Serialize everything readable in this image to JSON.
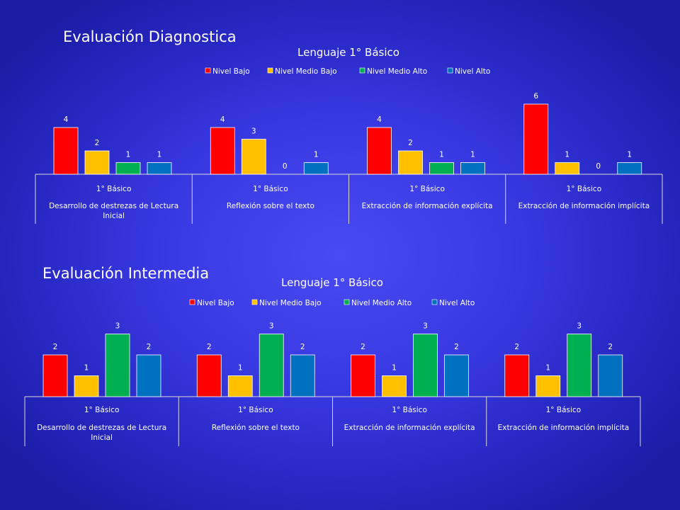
{
  "sections": [
    {
      "title": "Evaluación Diagnostica"
    },
    {
      "title": "Evaluación Intermedia"
    }
  ],
  "colors": {
    "Nivel Bajo": "#ff0000",
    "Nivel  Medio Bajo": "#ffc000",
    "Nivel Medio Alto": "#00b050",
    "Nivel Alto": "#0070c0",
    "text": "#ffffff",
    "grid": "#d9d9d9"
  },
  "chart_data": [
    {
      "type": "bar",
      "title": "Lenguaje 1° Básico",
      "legend_position": "top",
      "grid": false,
      "ylim": [
        0,
        6
      ],
      "categories": [
        {
          "level1": "1° Básico",
          "level2": "Desarrollo de destrezas de Lectura Inicial"
        },
        {
          "level1": "1° Básico",
          "level2": "Reflexión sobre el texto"
        },
        {
          "level1": "1° Básico",
          "level2": "Extracción de información explícita"
        },
        {
          "level1": "1° Básico",
          "level2": "Extracción de información implícita"
        }
      ],
      "series": [
        {
          "name": "Nivel Bajo",
          "values": [
            4,
            4,
            4,
            6
          ]
        },
        {
          "name": "Nivel  Medio Bajo",
          "values": [
            2,
            3,
            2,
            1
          ]
        },
        {
          "name": "Nivel Medio Alto",
          "values": [
            1,
            0,
            1,
            0
          ]
        },
        {
          "name": "Nivel Alto",
          "values": [
            1,
            1,
            1,
            1
          ]
        }
      ]
    },
    {
      "type": "bar",
      "title": "Lenguaje 1° Básico",
      "legend_position": "top",
      "grid": false,
      "ylim": [
        0,
        3
      ],
      "categories": [
        {
          "level1": "1° Básico",
          "level2": "Desarrollo de destrezas de Lectura Inicial"
        },
        {
          "level1": "1° Básico",
          "level2": "Reflexión sobre el texto"
        },
        {
          "level1": "1° Básico",
          "level2": "Extracción de información explícita"
        },
        {
          "level1": "1° Básico",
          "level2": "Extracción de información implícita"
        }
      ],
      "series": [
        {
          "name": "Nivel Bajo",
          "values": [
            2,
            2,
            2,
            2
          ]
        },
        {
          "name": "Nivel  Medio Bajo",
          "values": [
            1,
            1,
            1,
            1
          ]
        },
        {
          "name": "Nivel Medio Alto",
          "values": [
            3,
            3,
            3,
            3
          ]
        },
        {
          "name": "Nivel Alto",
          "values": [
            2,
            2,
            2,
            2
          ]
        }
      ]
    }
  ]
}
